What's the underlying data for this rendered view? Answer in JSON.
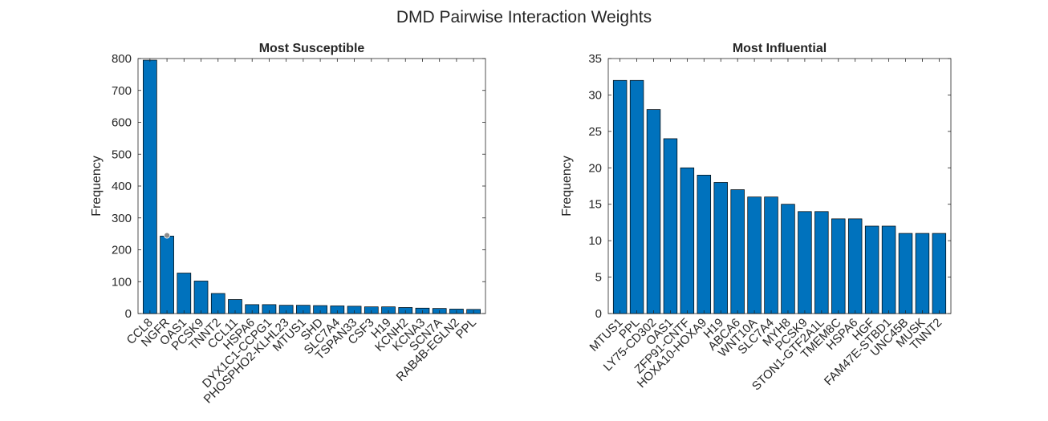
{
  "figure": {
    "title": "DMD Pairwise Interaction Weights"
  },
  "colors": {
    "bar_fill": "#0072BD",
    "bar_edge": "#000000",
    "axis": "#262626",
    "marker": "#8c8c8c"
  },
  "chart_data": [
    {
      "type": "bar",
      "title": "Most Susceptible",
      "xlabel": "",
      "ylabel": "Frequency",
      "ylim": [
        0,
        800
      ],
      "yticks": [
        0,
        100,
        200,
        300,
        400,
        500,
        600,
        700,
        800
      ],
      "grid": false,
      "legend": "none",
      "categories": [
        "CCL8",
        "NGFR",
        "OAS1",
        "PCSK9",
        "TNNT2",
        "CCL11",
        "HSPA6",
        "DYX1C1-CCPG1",
        "PHOSPHO2-KLHL23",
        "MTUS1",
        "SHD",
        "SLC7A4",
        "TSPAN33",
        "CSF3",
        "H19",
        "KCNH2",
        "KCNA3",
        "SCN7A",
        "RAB4B-EGLN2",
        "PPL"
      ],
      "values": [
        795,
        243,
        127,
        102,
        63,
        44,
        28,
        28,
        26,
        26,
        25,
        24,
        23,
        21,
        21,
        19,
        17,
        16,
        14,
        13
      ],
      "marker": {
        "category": "NGFR",
        "value": 245
      }
    },
    {
      "type": "bar",
      "title": "Most Influential",
      "xlabel": "",
      "ylabel": "Frequency",
      "ylim": [
        0,
        35
      ],
      "yticks": [
        0,
        5,
        10,
        15,
        20,
        25,
        30,
        35
      ],
      "grid": false,
      "legend": "none",
      "categories": [
        "MTUS1",
        "PPL",
        "LY75-CD302",
        "OAS1",
        "ZFP91-CNTF",
        "HOXA10-HOXA9",
        "H19",
        "ABCA6",
        "WNT10A",
        "SLC7A4",
        "MYH8",
        "PCSK9",
        "STON1-GTF2A1L",
        "TMEM8C",
        "HSPA6",
        "HGF",
        "FAM47E-STBD1",
        "UNC45B",
        "MUSK",
        "TNNT2"
      ],
      "values": [
        32,
        32,
        28,
        24,
        20,
        19,
        18,
        17,
        16,
        16,
        15,
        14,
        14,
        13,
        13,
        12,
        12,
        11,
        11,
        11
      ]
    }
  ]
}
